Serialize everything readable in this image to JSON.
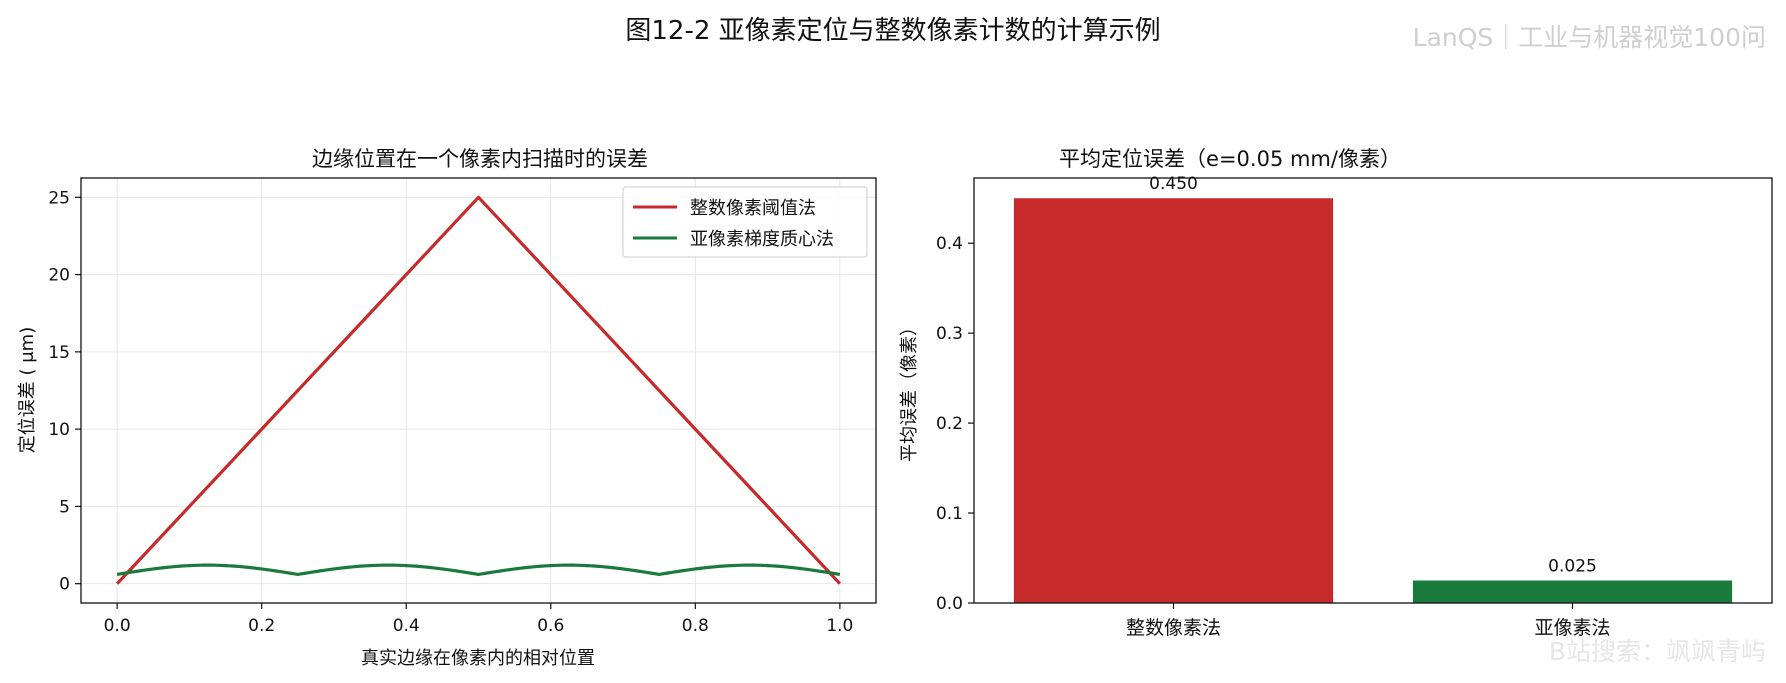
{
  "figure": {
    "title": "图12-2  亚像素定位与整数像素计数的计算示例",
    "watermark_top": "LanQS｜工业与机器视觉100问",
    "watermark_bottom": "B站搜索：飒飒青屿"
  },
  "chart_data": [
    {
      "type": "line",
      "title": "边缘位置在一个像素内扫描时的误差",
      "xlabel": "真实边缘在像素内的相对位置",
      "ylabel": "定位误差 ( μm)",
      "xlim": [
        -0.05,
        1.05
      ],
      "ylim": [
        -1.25,
        26.25
      ],
      "xticks": [
        0.0,
        0.2,
        0.4,
        0.6,
        0.8,
        1.0
      ],
      "xtick_labels": [
        "0.0",
        "0.2",
        "0.4",
        "0.6",
        "0.8",
        "1.0"
      ],
      "yticks": [
        0,
        5,
        10,
        15,
        20,
        25
      ],
      "ytick_labels": [
        "0",
        "5",
        "10",
        "15",
        "20",
        "25"
      ],
      "grid": true,
      "legend": "top-right",
      "series": [
        {
          "name": "整数像素阈值法",
          "color": "#c62a2a",
          "x": [
            0.0,
            0.5,
            1.0
          ],
          "y": [
            0,
            25,
            0
          ]
        },
        {
          "name": "亚像素梯度质心法",
          "color": "#1a7a3c",
          "x": [
            0.0,
            0.0625,
            0.125,
            0.1875,
            0.25,
            0.3125,
            0.375,
            0.4375,
            0.5,
            0.5625,
            0.625,
            0.6875,
            0.75,
            0.8125,
            0.875,
            0.9375,
            1.0
          ],
          "y": [
            0.6,
            1.02,
            1.2,
            1.02,
            0.6,
            1.02,
            1.2,
            1.02,
            0.6,
            1.02,
            1.2,
            1.02,
            0.6,
            1.02,
            1.2,
            1.02,
            0.6
          ]
        }
      ]
    },
    {
      "type": "bar",
      "title": "平均定位误差（e=0.05 mm/像素）",
      "xlabel": "",
      "ylabel": "平均误差（像素）",
      "categories": [
        "整数像素法",
        "亚像素法"
      ],
      "values": [
        0.45,
        0.025
      ],
      "value_labels": [
        "0.450",
        "0.025"
      ],
      "colors": [
        "#c62a2a",
        "#1a7a3c"
      ],
      "ylim": [
        0,
        0.4725
      ],
      "yticks": [
        0.0,
        0.1,
        0.2,
        0.3,
        0.4
      ],
      "ytick_labels": [
        "0.0",
        "0.1",
        "0.2",
        "0.3",
        "0.4"
      ],
      "grid": false
    }
  ]
}
